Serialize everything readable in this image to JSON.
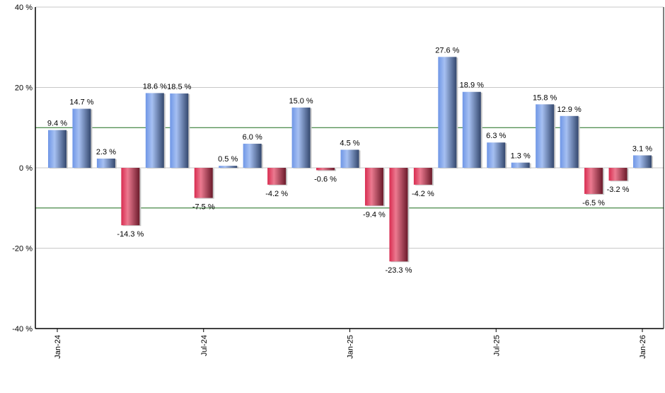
{
  "chart_data": {
    "type": "bar",
    "title": "",
    "xlabel": "",
    "ylabel": "",
    "ylim": [
      -40,
      40
    ],
    "yticks": [
      -40,
      -20,
      0,
      20,
      40
    ],
    "ytick_labels": [
      "-40 %",
      "-20 %",
      "0 %",
      "20 %",
      "40 %"
    ],
    "reference_lines": [
      10,
      -10
    ],
    "grid": true,
    "categories": [
      "Jan-24",
      "Feb-24",
      "Mar-24",
      "Apr-24",
      "May-24",
      "Jun-24",
      "Jul-24",
      "Aug-24",
      "Sep-24",
      "Oct-24",
      "Nov-24",
      "Dec-24",
      "Jan-25",
      "Feb-25",
      "Mar-25",
      "Apr-25",
      "May-25",
      "Jun-25",
      "Jul-25",
      "Aug-25",
      "Sep-25",
      "Oct-25",
      "Nov-25",
      "Dec-25",
      "Jan-26"
    ],
    "xtick_labels": [
      "Jan-24",
      "Jul-24",
      "Jan-25",
      "Jul-25",
      "Jan-26"
    ],
    "values": [
      9.4,
      14.7,
      2.3,
      -14.3,
      18.6,
      18.5,
      -7.5,
      0.5,
      6.0,
      -4.2,
      15.0,
      -0.6,
      4.5,
      -9.4,
      -23.3,
      -4.2,
      27.6,
      18.9,
      6.3,
      1.3,
      15.8,
      12.9,
      -6.5,
      -3.2,
      3.1
    ],
    "data_labels": [
      "9.4 %",
      "14.7 %",
      "2.3 %",
      "-14.3 %",
      "18.6 %",
      "18.5 %",
      "-7.5 %",
      "0.5 %",
      "6.0 %",
      "-4.2 %",
      "15.0 %",
      "-0.6 %",
      "4.5 %",
      "-9.4 %",
      "-23.3 %",
      "-4.2 %",
      "27.6 %",
      "18.9 %",
      "6.3 %",
      "1.3 %",
      "15.8 %",
      "12.9 %",
      "-6.5 %",
      "-3.2 %",
      "3.1 %"
    ],
    "colors": {
      "positive": "#7a9ee8",
      "negative": "#d83a5a",
      "reference_line": "#1a6b1a",
      "grid": "#c8c8c8"
    }
  }
}
